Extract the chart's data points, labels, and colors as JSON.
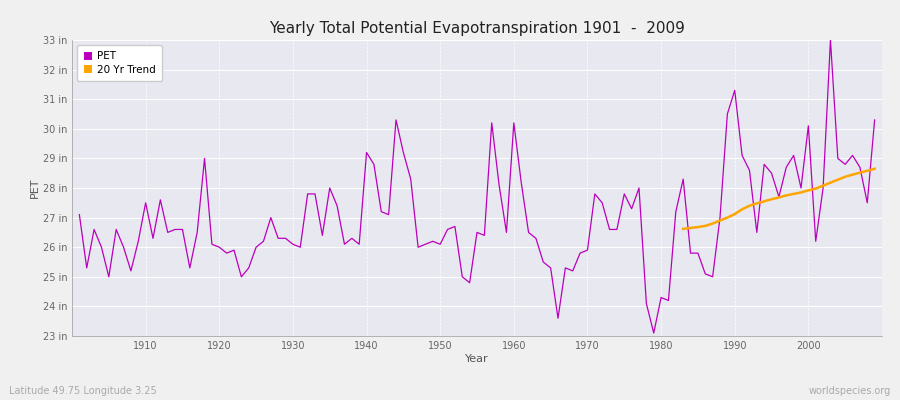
{
  "title": "Yearly Total Potential Evapotranspiration 1901  -  2009",
  "xlabel": "Year",
  "ylabel": "PET",
  "subtitle": "Latitude 49.75 Longitude 3.25",
  "watermark": "worldspecies.org",
  "pet_color": "#BB00BB",
  "trend_color": "#FFA500",
  "bg_color": "#E8E8F0",
  "fig_bg": "#F0F0F0",
  "ylim": [
    23,
    33
  ],
  "xlim": [
    1900,
    2010
  ],
  "xticks": [
    1910,
    1920,
    1930,
    1940,
    1950,
    1960,
    1970,
    1980,
    1990,
    2000
  ],
  "yticks": [
    23,
    24,
    25,
    26,
    27,
    28,
    29,
    30,
    31,
    32,
    33
  ],
  "years": [
    1901,
    1902,
    1903,
    1904,
    1905,
    1906,
    1907,
    1908,
    1909,
    1910,
    1911,
    1912,
    1913,
    1914,
    1915,
    1916,
    1917,
    1918,
    1919,
    1920,
    1921,
    1922,
    1923,
    1924,
    1925,
    1926,
    1927,
    1928,
    1929,
    1930,
    1931,
    1932,
    1933,
    1934,
    1935,
    1936,
    1937,
    1938,
    1939,
    1940,
    1941,
    1942,
    1943,
    1944,
    1945,
    1946,
    1947,
    1948,
    1949,
    1950,
    1951,
    1952,
    1953,
    1954,
    1955,
    1956,
    1957,
    1958,
    1959,
    1960,
    1961,
    1962,
    1963,
    1964,
    1965,
    1966,
    1967,
    1968,
    1969,
    1970,
    1971,
    1972,
    1973,
    1974,
    1975,
    1976,
    1977,
    1978,
    1979,
    1980,
    1981,
    1982,
    1983,
    1984,
    1985,
    1986,
    1987,
    1988,
    1989,
    1990,
    1991,
    1992,
    1993,
    1994,
    1995,
    1996,
    1997,
    1998,
    1999,
    2000,
    2001,
    2002,
    2003,
    2004,
    2005,
    2006,
    2007,
    2008,
    2009
  ],
  "pet_values": [
    27.1,
    25.3,
    26.6,
    26.0,
    25.0,
    26.6,
    26.0,
    25.2,
    26.2,
    27.5,
    26.3,
    27.6,
    26.5,
    26.6,
    26.6,
    25.3,
    26.5,
    29.0,
    26.1,
    26.0,
    25.8,
    25.9,
    25.0,
    25.3,
    26.0,
    26.2,
    27.0,
    26.3,
    26.3,
    26.1,
    26.0,
    27.8,
    27.8,
    26.4,
    28.0,
    27.4,
    26.1,
    26.3,
    26.1,
    29.2,
    28.8,
    27.2,
    27.1,
    30.3,
    29.2,
    28.3,
    26.0,
    26.1,
    26.2,
    26.1,
    26.6,
    26.7,
    25.0,
    24.8,
    26.5,
    26.4,
    30.2,
    28.1,
    26.5,
    30.2,
    28.2,
    26.5,
    26.3,
    25.5,
    25.3,
    23.6,
    25.3,
    25.2,
    25.8,
    25.9,
    27.8,
    27.5,
    26.6,
    26.6,
    27.8,
    27.3,
    28.0,
    24.1,
    23.1,
    24.3,
    24.2,
    27.2,
    28.3,
    25.8,
    25.8,
    25.1,
    25.0,
    27.0,
    30.5,
    31.3,
    29.1,
    28.6,
    26.5,
    28.8,
    28.5,
    27.7,
    28.7,
    29.1,
    28.0,
    30.1,
    26.2,
    28.0,
    33.0,
    29.0,
    28.8,
    29.1,
    28.7,
    27.5,
    30.3
  ],
  "trend_years": [
    1983,
    1984,
    1985,
    1986,
    1987,
    1988,
    1989,
    1990,
    1991,
    1992,
    1993,
    1994,
    1995,
    1996,
    1997,
    1998,
    1999,
    2000,
    2001,
    2002,
    2003,
    2004,
    2005,
    2006,
    2007,
    2008,
    2009
  ],
  "trend_values": [
    26.62,
    26.65,
    26.68,
    26.72,
    26.8,
    26.9,
    27.0,
    27.12,
    27.28,
    27.4,
    27.48,
    27.55,
    27.62,
    27.68,
    27.75,
    27.8,
    27.85,
    27.92,
    27.98,
    28.08,
    28.18,
    28.28,
    28.38,
    28.45,
    28.52,
    28.58,
    28.65
  ]
}
